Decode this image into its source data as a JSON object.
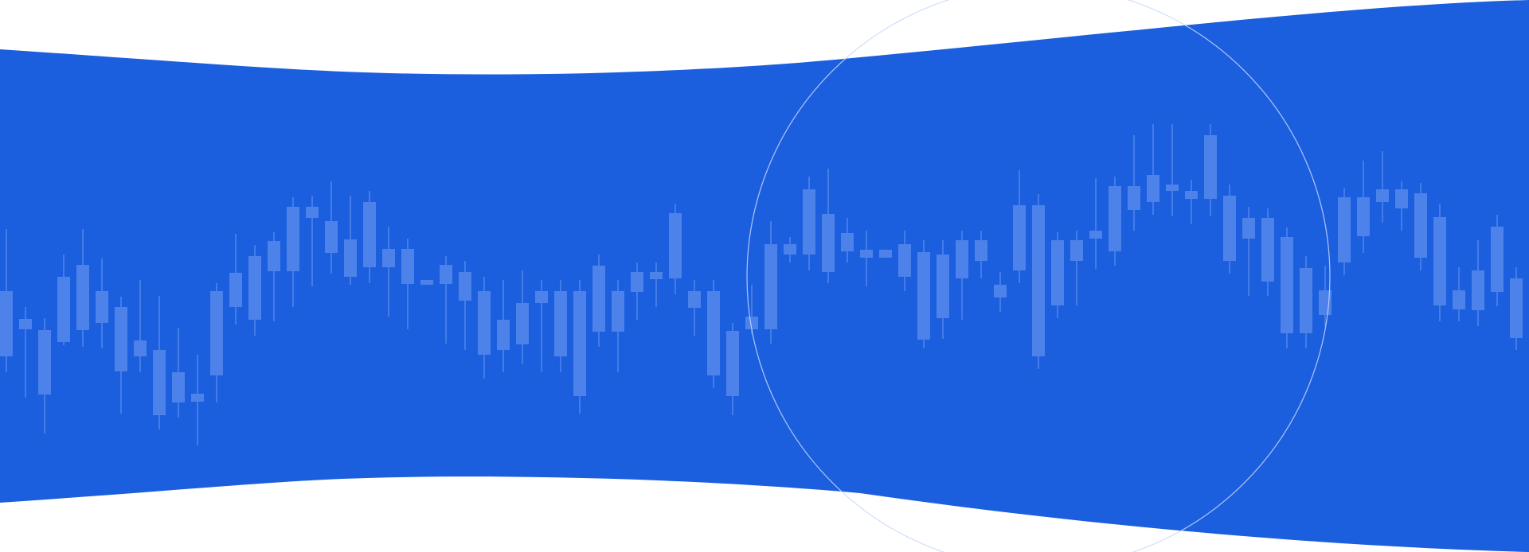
{
  "colors": {
    "page_background": "#ffffff",
    "band_fill": "#1b5fde",
    "candle_fill": "#4d82ea",
    "candle_wick": "#5f8fee",
    "circle_stroke": "#c9d8fb"
  },
  "decor": {
    "shape": "wavy-blue-band",
    "overlay": "candlestick-pattern",
    "accent": "thin-circle-outline"
  }
}
